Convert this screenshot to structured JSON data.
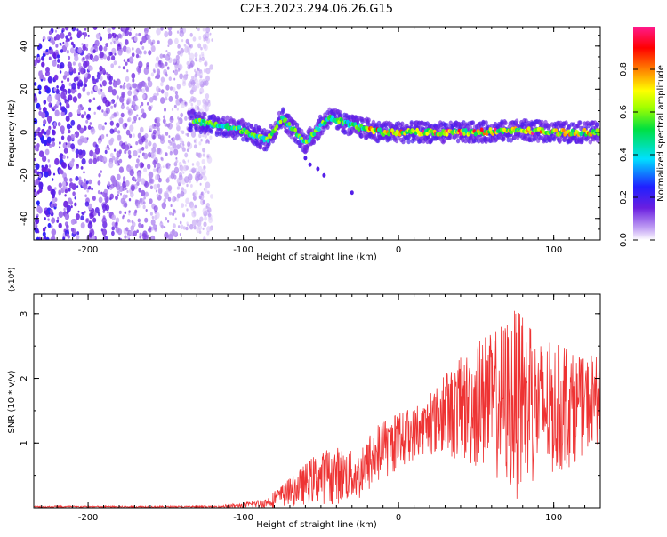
{
  "title": "C2E3.2023.294.06.26.G15",
  "chart_data": [
    {
      "type": "heatmap",
      "xlabel": "Height of straight line (km)",
      "ylabel": "Frequency (Hz)",
      "xlim": [
        -235,
        130
      ],
      "ylim": [
        -50,
        49
      ],
      "xticks": [
        -200,
        -100,
        0,
        100
      ],
      "yticks": [
        -40,
        -20,
        0,
        20,
        40
      ],
      "grid": false,
      "colorbar": {
        "label": "Normalized spectral amplitude",
        "range": [
          0.0,
          1.0
        ],
        "ticks": [
          "0.0",
          "0.2",
          "0.4",
          "0.6",
          "0.8"
        ],
        "colormap": "rainbow (purple → blue → cyan → green → yellow → orange → red → pink)"
      },
      "description_points": [
        {
          "x": -130,
          "y": 5
        },
        {
          "x": -100,
          "y": 1
        },
        {
          "x": -85,
          "y": -4
        },
        {
          "x": -75,
          "y": 7
        },
        {
          "x": -60,
          "y": -5
        },
        {
          "x": -45,
          "y": 7
        },
        {
          "x": -30,
          "y": 3
        },
        {
          "x": -10,
          "y": 0
        },
        {
          "x": 20,
          "y": 0
        },
        {
          "x": 50,
          "y": 0
        },
        {
          "x": 80,
          "y": 1
        },
        {
          "x": 100,
          "y": 0
        },
        {
          "x": 130,
          "y": 0
        }
      ]
    },
    {
      "type": "line",
      "xlabel": "Height of straight line (km)",
      "ylabel": "SNR (10 * v/v)",
      "y_multiplier": "(x10⁴)",
      "xlim": [
        -235,
        130
      ],
      "ylim": [
        0,
        3.3
      ],
      "xticks": [
        -200,
        -100,
        0,
        100
      ],
      "yticks": [
        1,
        2,
        3
      ],
      "grid": false,
      "series_color": "#ee3333",
      "envelope": [
        {
          "x": -235,
          "lo": 0.0,
          "hi": 0.03
        },
        {
          "x": -120,
          "lo": 0.0,
          "hi": 0.03
        },
        {
          "x": -100,
          "lo": 0.0,
          "hi": 0.07
        },
        {
          "x": -85,
          "lo": 0.0,
          "hi": 0.15
        },
        {
          "x": -70,
          "lo": 0.02,
          "hi": 0.45
        },
        {
          "x": -55,
          "lo": 0.05,
          "hi": 0.8
        },
        {
          "x": -40,
          "lo": 0.05,
          "hi": 0.95
        },
        {
          "x": -25,
          "lo": 0.1,
          "hi": 0.85
        },
        {
          "x": -15,
          "lo": 0.3,
          "hi": 1.25
        },
        {
          "x": 0,
          "lo": 0.6,
          "hi": 1.45
        },
        {
          "x": 15,
          "lo": 0.8,
          "hi": 1.6
        },
        {
          "x": 30,
          "lo": 0.8,
          "hi": 2.05
        },
        {
          "x": 45,
          "lo": 0.6,
          "hi": 2.45
        },
        {
          "x": 60,
          "lo": 0.5,
          "hi": 2.7
        },
        {
          "x": 75,
          "lo": 0.1,
          "hi": 3.1
        },
        {
          "x": 90,
          "lo": 0.4,
          "hi": 2.6
        },
        {
          "x": 105,
          "lo": 0.5,
          "hi": 2.5
        },
        {
          "x": 118,
          "lo": 0.8,
          "hi": 2.3
        },
        {
          "x": 130,
          "lo": 1.0,
          "hi": 2.4
        }
      ]
    }
  ]
}
